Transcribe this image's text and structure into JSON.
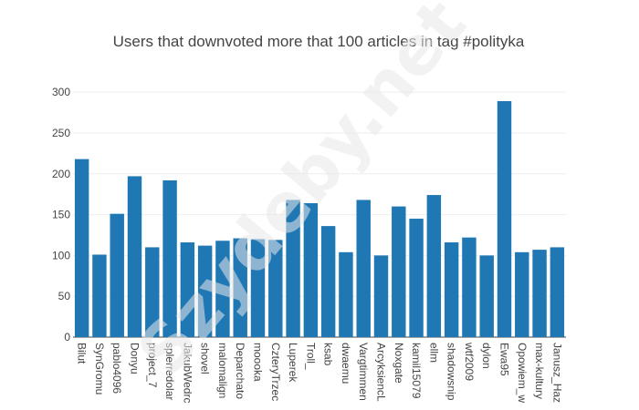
{
  "chart_data": {
    "type": "bar",
    "title": "Users that downvoted more that 100 articles in tag #polityka",
    "xlabel": "",
    "ylabel": "",
    "ylim": [
      0,
      318
    ],
    "yticks": [
      0,
      50,
      100,
      150,
      200,
      250,
      300
    ],
    "bar_color": "#1f77b4",
    "categories": [
      "Bilut",
      "SynGromu",
      "pablo4096",
      "Donyu",
      "project_7",
      "splerredolan",
      "JakubWedrowycz",
      "shovel",
      "malomalgner",
      "Deparchato",
      "moooka",
      "CzteryTrzeciLaki",
      "Luperek",
      "Troll_",
      "ksab",
      "dwaemu",
      "Vargtimmen",
      "Arcykslencler",
      "Noxgate",
      "kamil15079",
      "ellm",
      "shadowsnipe",
      "wtf2009",
      "dylon",
      "Ewa95",
      "Opowiem_wam",
      "max-kultury",
      "Janusz_Hazard"
    ],
    "tick_labels": [
      "Bilut",
      "SynGromu",
      "pablo4096",
      "Donyu",
      "project_7",
      "splerredolar",
      "JakubWedrc",
      "shovel",
      "malomalign",
      "Deparchato",
      "moooka",
      "CzteryTrzec",
      "Luperek",
      "Troll_",
      "ksab",
      "dwaemu",
      "Vargtimmen",
      "ArcyksiencL",
      "Noxgate",
      "kamil15079",
      "ellm",
      "shadowsnip",
      "wtf2009",
      "dylon",
      "Ewa95",
      "Opowiem_w",
      "max-kultury",
      "Janusz_Haz"
    ],
    "values": [
      218,
      101,
      151,
      197,
      110,
      192,
      116,
      112,
      118,
      121,
      120,
      119,
      168,
      164,
      136,
      104,
      168,
      100,
      160,
      145,
      174,
      116,
      122,
      100,
      289,
      104,
      107,
      110
    ],
    "grid": true,
    "legend": "none"
  },
  "watermark": "Szydeby.net"
}
